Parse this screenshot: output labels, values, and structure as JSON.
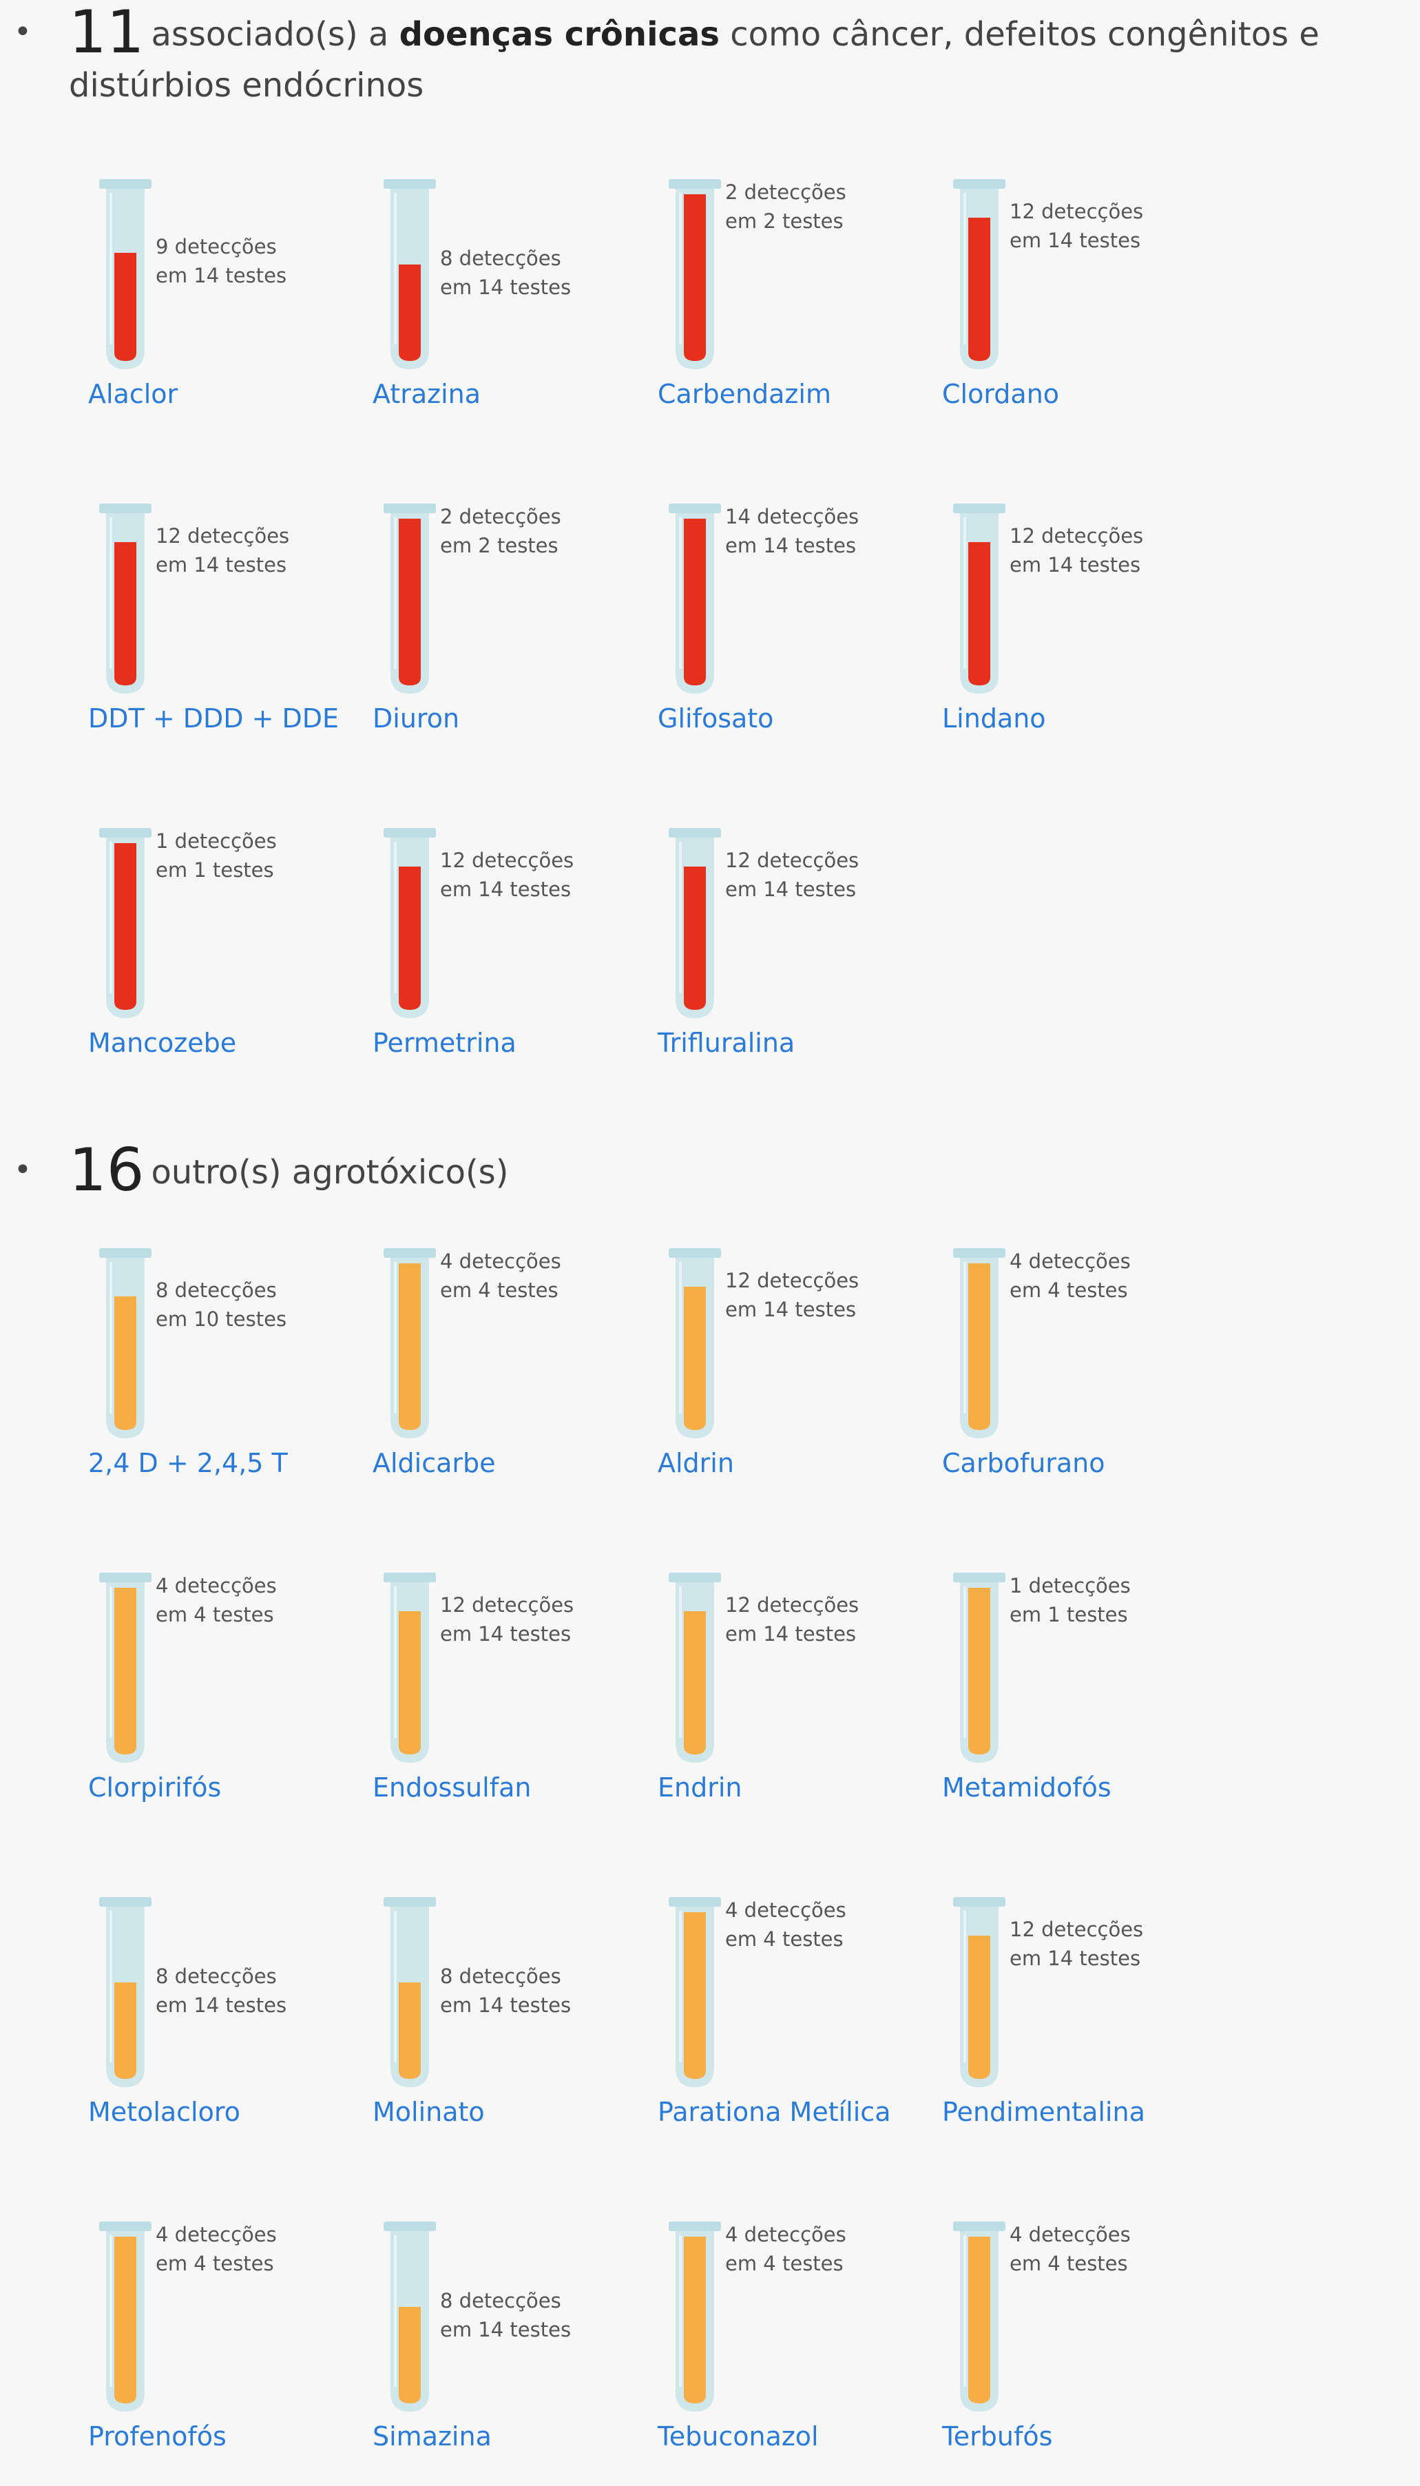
{
  "colors": {
    "chronic_fill": "#e5311c",
    "other_fill": "#f7ad45",
    "link": "#2a7ad8"
  },
  "sections": [
    {
      "count": "11",
      "text_before": "associado(s) a ",
      "strong": "doenças crônicas",
      "text_after": " como câncer, defeitos congênitos e distúrbios endócrinos",
      "fill": "chronic",
      "items": [
        {
          "name": "Alaclor",
          "det_line1": "9 detecções",
          "det_line2": "em 14 testes",
          "detections": 9,
          "tests": 14
        },
        {
          "name": "Atrazina",
          "det_line1": "8 detecções",
          "det_line2": "em 14 testes",
          "detections": 8,
          "tests": 14
        },
        {
          "name": "Carbendazim",
          "det_line1": "2 detecções",
          "det_line2": "em 2 testes",
          "detections": 2,
          "tests": 2
        },
        {
          "name": "Clordano",
          "det_line1": "12 detecções",
          "det_line2": "em 14 testes",
          "detections": 12,
          "tests": 14
        },
        {
          "name": "DDT + DDD + DDE",
          "det_line1": "12 detecções",
          "det_line2": "em 14 testes",
          "detections": 12,
          "tests": 14
        },
        {
          "name": "Diuron",
          "det_line1": "2 detecções",
          "det_line2": "em 2 testes",
          "detections": 2,
          "tests": 2
        },
        {
          "name": "Glifosato",
          "det_line1": "14 detecções",
          "det_line2": "em 14 testes",
          "detections": 14,
          "tests": 14
        },
        {
          "name": "Lindano",
          "det_line1": "12 detecções",
          "det_line2": "em 14 testes",
          "detections": 12,
          "tests": 14
        },
        {
          "name": "Mancozebe",
          "det_line1": "1 detecções",
          "det_line2": "em 1 testes",
          "detections": 1,
          "tests": 1
        },
        {
          "name": "Permetrina",
          "det_line1": "12 detecções",
          "det_line2": "em 14 testes",
          "detections": 12,
          "tests": 14
        },
        {
          "name": "Trifluralina",
          "det_line1": "12 detecções",
          "det_line2": "em 14 testes",
          "detections": 12,
          "tests": 14
        }
      ]
    },
    {
      "count": "16",
      "text_before": "outro(s) agrotóxico(s)",
      "strong": "",
      "text_after": "",
      "fill": "other",
      "items": [
        {
          "name": "2,4 D + 2,4,5 T",
          "det_line1": "8 detecções",
          "det_line2": "em 10 testes",
          "detections": 8,
          "tests": 10
        },
        {
          "name": "Aldicarbe",
          "det_line1": "4 detecções",
          "det_line2": "em 4 testes",
          "detections": 4,
          "tests": 4
        },
        {
          "name": "Aldrin",
          "det_line1": "12 detecções",
          "det_line2": "em 14 testes",
          "detections": 12,
          "tests": 14
        },
        {
          "name": "Carbofurano",
          "det_line1": "4 detecções",
          "det_line2": "em 4 testes",
          "detections": 4,
          "tests": 4
        },
        {
          "name": "Clorpirifós",
          "det_line1": "4 detecções",
          "det_line2": "em 4 testes",
          "detections": 4,
          "tests": 4
        },
        {
          "name": "Endossulfan",
          "det_line1": "12 detecções",
          "det_line2": "em 14 testes",
          "detections": 12,
          "tests": 14
        },
        {
          "name": "Endrin",
          "det_line1": "12 detecções",
          "det_line2": "em 14 testes",
          "detections": 12,
          "tests": 14
        },
        {
          "name": "Metamidofós",
          "det_line1": "1 detecções",
          "det_line2": "em 1 testes",
          "detections": 1,
          "tests": 1
        },
        {
          "name": "Metolacloro",
          "det_line1": "8 detecções",
          "det_line2": "em 14 testes",
          "detections": 8,
          "tests": 14
        },
        {
          "name": "Molinato",
          "det_line1": "8 detecções",
          "det_line2": "em 14 testes",
          "detections": 8,
          "tests": 14
        },
        {
          "name": "Parationa Metílica",
          "det_line1": "4 detecções",
          "det_line2": "em 4 testes",
          "detections": 4,
          "tests": 4
        },
        {
          "name": "Pendimentalina",
          "det_line1": "12 detecções",
          "det_line2": "em 14 testes",
          "detections": 12,
          "tests": 14
        },
        {
          "name": "Profenofós",
          "det_line1": "4 detecções",
          "det_line2": "em 4 testes",
          "detections": 4,
          "tests": 4
        },
        {
          "name": "Simazina",
          "det_line1": "8 detecções",
          "det_line2": "em 14 testes",
          "detections": 8,
          "tests": 14
        },
        {
          "name": "Tebuconazol",
          "det_line1": "4 detecções",
          "det_line2": "em 4 testes",
          "detections": 4,
          "tests": 4
        },
        {
          "name": "Terbufós",
          "det_line1": "4 detecções",
          "det_line2": "em 4 testes",
          "detections": 4,
          "tests": 4
        }
      ]
    }
  ]
}
